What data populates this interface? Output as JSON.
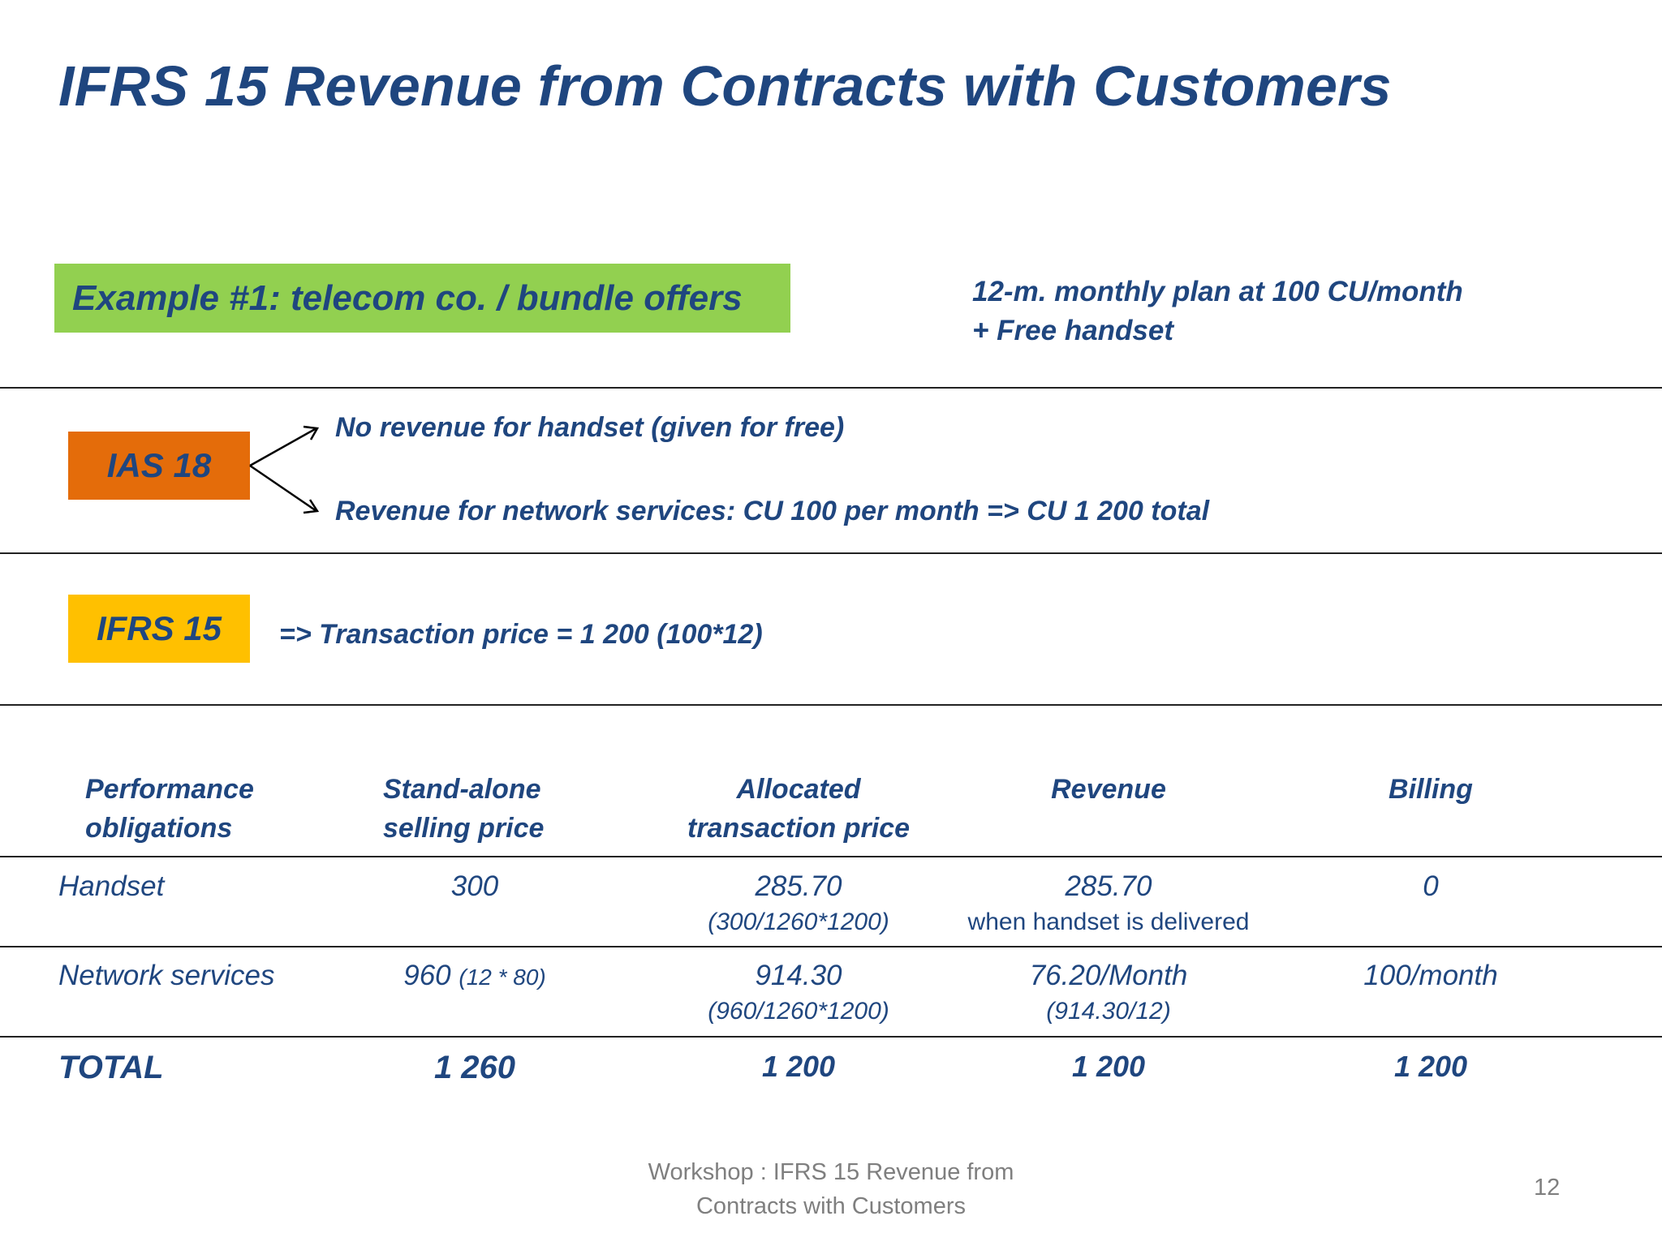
{
  "slide": {
    "title": "IFRS 15 Revenue from Contracts with Customers"
  },
  "example": {
    "label": "Example #1: telecom co. / bundle offers",
    "plan_line1": "12-m. monthly plan at 100 CU/month",
    "plan_line2": "+ Free handset"
  },
  "ias18": {
    "tag": "IAS 18",
    "statement1": "No revenue for handset (given for free)",
    "statement2": "Revenue for network services: CU 100 per month => CU 1 200 total"
  },
  "ifrs15": {
    "tag": "IFRS 15",
    "statement": "=> Transaction price = 1 200 (100*12)"
  },
  "table": {
    "headers": [
      {
        "line1": "Performance",
        "line2": "obligations"
      },
      {
        "line1": "Stand-alone",
        "line2": "selling price"
      },
      {
        "line1": "Allocated",
        "line2": "transaction price"
      },
      {
        "line1": "Revenue",
        "line2": ""
      },
      {
        "line1": "Billing",
        "line2": ""
      }
    ],
    "rows": [
      {
        "obligation": "Handset",
        "standalone": "300",
        "standalone_note": "",
        "allocated": "285.70",
        "allocated_note": "(300/1260*1200)",
        "revenue": "285.70",
        "revenue_note": "when handset is delivered",
        "billing": "0"
      },
      {
        "obligation": "Network services",
        "standalone": "960",
        "standalone_note": "(12 * 80)",
        "allocated": "914.30",
        "allocated_note": "(960/1260*1200)",
        "revenue": "76.20/Month",
        "revenue_note": "(914.30/12)",
        "billing": "100/month"
      }
    ],
    "total": {
      "label": "TOTAL",
      "standalone": "1 260",
      "allocated": "1 200",
      "revenue": "1 200",
      "billing": "1 200"
    }
  },
  "footer": {
    "line1": "Workshop : IFRS 15 Revenue from",
    "line2": "Contracts with Customers",
    "page_number": "12"
  },
  "colors": {
    "text": "#1f467f",
    "example_box": "#92d050",
    "ias_box": "#e46c0a",
    "ifrs_box": "#ffc000",
    "footer": "#7f7f7f"
  }
}
